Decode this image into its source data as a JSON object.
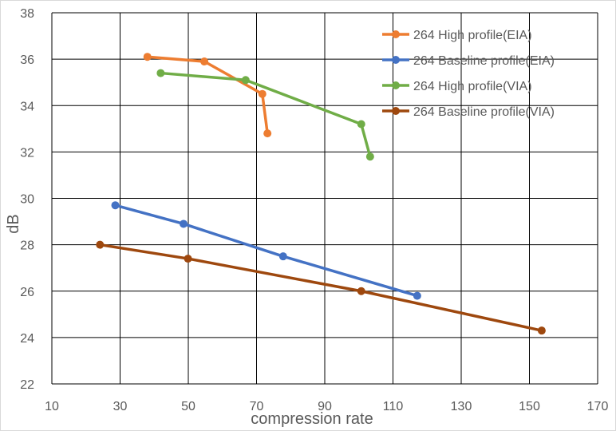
{
  "chart_data": {
    "type": "line",
    "title": "",
    "xlabel": "compression rate",
    "ylabel": "dB",
    "xlim": [
      10,
      170
    ],
    "ylim": [
      22,
      38
    ],
    "xticks": [
      10,
      30,
      50,
      70,
      90,
      110,
      130,
      150,
      170
    ],
    "yticks": [
      22,
      24,
      26,
      28,
      30,
      32,
      34,
      36,
      38
    ],
    "grid": true,
    "legend_position": "top-right",
    "series": [
      {
        "name": "264 High profile(EIA)",
        "color": "#ed7d31",
        "points": [
          [
            38,
            36.1
          ],
          [
            54.7,
            35.9
          ],
          [
            71.7,
            34.5
          ],
          [
            73.2,
            32.8
          ]
        ]
      },
      {
        "name": "264 Baseline profile(EIA)",
        "color": "#4472c4",
        "points": [
          [
            28.6,
            29.7
          ],
          [
            48.6,
            28.9
          ],
          [
            77.8,
            27.5
          ],
          [
            117.1,
            25.8
          ]
        ]
      },
      {
        "name": "264 High profile(VIA)",
        "color": "#70ad47",
        "points": [
          [
            41.9,
            35.4
          ],
          [
            66.8,
            35.1
          ],
          [
            100.7,
            33.2
          ],
          [
            103.3,
            31.8
          ]
        ]
      },
      {
        "name": "264 Baseline profile(VIA)",
        "color": "#9e480e",
        "points": [
          [
            24.1,
            28.0
          ],
          [
            49.9,
            27.4
          ],
          [
            100.7,
            26.0
          ],
          [
            153.6,
            24.3
          ]
        ]
      }
    ]
  }
}
